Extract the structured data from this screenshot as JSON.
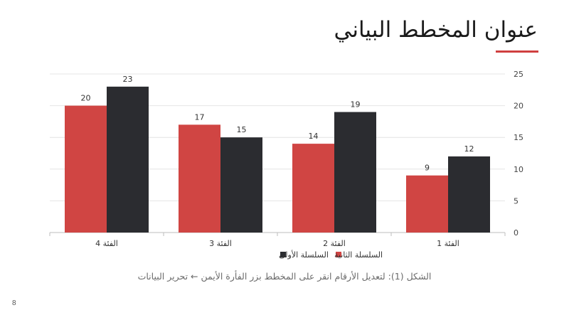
{
  "slide": {
    "title": "عنوان المخطط البياني",
    "caption": "الشكل (1): لتعديل الأرقام انقر على المخطط بزر الفأرة الأيمن ← تحرير البيانات",
    "page_number": "8",
    "accent_color": "#D04040"
  },
  "chart_data": {
    "type": "bar",
    "categories": [
      "الفئة 1",
      "الفئة 2",
      "الفئة 3",
      "الفئة 4"
    ],
    "x_axis_direction": "right-to-left",
    "y_axis_side": "right",
    "series": [
      {
        "name": "السلسلة الأولى",
        "values": [
          12,
          19,
          15,
          23
        ],
        "color": "#2B2C30"
      },
      {
        "name": "السلسلة الثانية",
        "values": [
          9,
          14,
          17,
          20
        ],
        "color": "#D04543"
      }
    ],
    "ylim": [
      0,
      25
    ],
    "yticks": [
      0,
      5,
      10,
      15,
      20,
      25
    ],
    "grid": true,
    "data_labels": true,
    "legend_position": "bottom"
  }
}
